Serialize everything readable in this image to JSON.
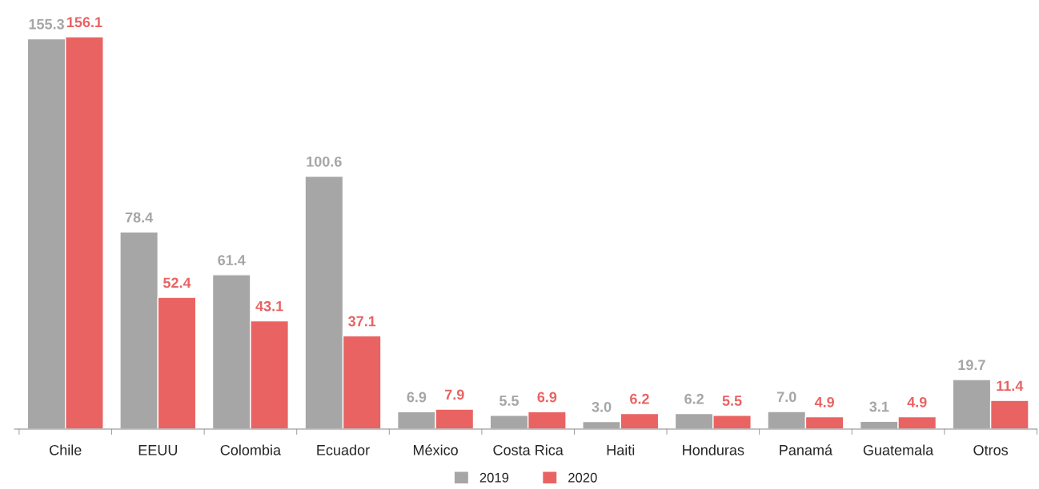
{
  "chart_data": {
    "type": "bar",
    "categories": [
      "Chile",
      "EEUU",
      "Colombia",
      "Ecuador",
      "México",
      "Costa Rica",
      "Haiti",
      "Honduras",
      "Panamá",
      "Guatemala",
      "Otros"
    ],
    "series": [
      {
        "name": "2019",
        "color": "#a6a6a6",
        "values": [
          155.3,
          78.4,
          61.4,
          100.6,
          6.9,
          5.5,
          3.0,
          6.2,
          7.0,
          3.1,
          19.7
        ],
        "value_labels": [
          "155.3",
          "78.4",
          "61.4",
          "100.6",
          "6.9",
          "5.5",
          "3.0",
          "6.2",
          "7.0",
          "3.1",
          "19.7"
        ]
      },
      {
        "name": "2020",
        "color": "#e96363",
        "values": [
          156.1,
          52.4,
          43.1,
          37.1,
          7.9,
          6.9,
          6.2,
          5.5,
          4.9,
          4.9,
          11.4
        ],
        "value_labels": [
          "156.1",
          "52.4",
          "43.1",
          "37.1",
          "7.9",
          "6.9",
          "6.2",
          "5.5",
          "4.9",
          "4.9",
          "11.4"
        ]
      }
    ],
    "legend": "bottom",
    "grid": false
  }
}
